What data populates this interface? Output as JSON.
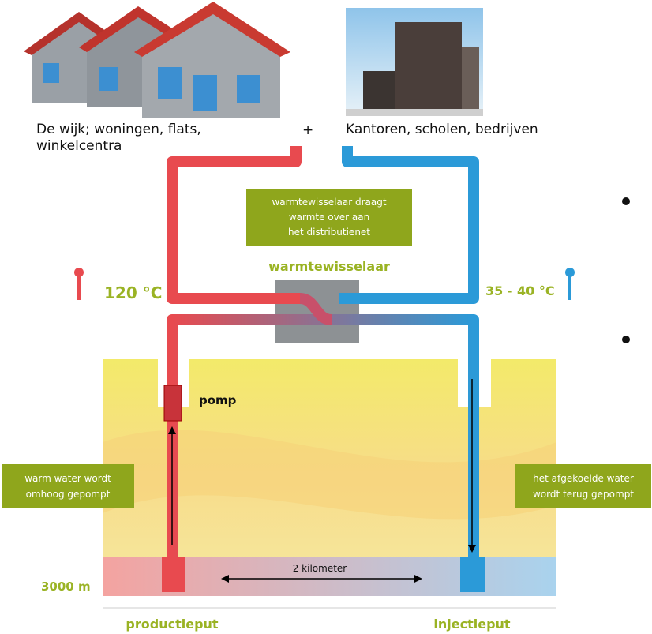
{
  "labels": {
    "left_top": [
      "De wijk; woningen, flats,",
      "winkelcentra"
    ],
    "plus": "+",
    "right_top": "Kantoren, scholen, bedrijven",
    "exchanger_note": [
      "warmtewisselaar draagt",
      "warmte over aan",
      "het distributienet"
    ],
    "exchanger": "warmtewisselaar",
    "temp_hot": "120 °C",
    "temp_cold": "35 - 40 °C",
    "pump": "pomp",
    "left_note": [
      "warm water wordt",
      "omhoog gepompt"
    ],
    "right_note": [
      "het afgekoelde water",
      "wordt terug gepompt"
    ],
    "distance": "2 kilometer",
    "depth": "3000 m",
    "production_well": "productieput",
    "injection_well": "injectieput"
  }
}
